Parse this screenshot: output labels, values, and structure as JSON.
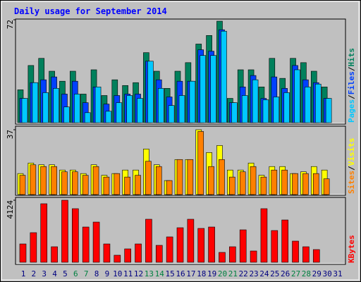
{
  "chart_data": [
    {
      "type": "bar",
      "title": "Daily usage for September 2014",
      "legend_separator": "/",
      "ylim": [
        0,
        72
      ],
      "yticks": [
        72
      ],
      "series": [
        {
          "name": "Hits",
          "color": "#00805c",
          "values": [
            23,
            40,
            45,
            36,
            29,
            36,
            20,
            37,
            19,
            30,
            26,
            28,
            49,
            36,
            24,
            36,
            42,
            55,
            61,
            71,
            17,
            37,
            37,
            25,
            45,
            31,
            45,
            42,
            36,
            25,
            0
          ]
        },
        {
          "name": "Files",
          "color": "#0040ff",
          "values": [
            17,
            28,
            30,
            32,
            20,
            29,
            14,
            25,
            13,
            19,
            20,
            20,
            43,
            30,
            18,
            29,
            29,
            51,
            50,
            65,
            14,
            25,
            33,
            17,
            32,
            24,
            40,
            30,
            28,
            17,
            0
          ]
        },
        {
          "name": "Pages",
          "color": "#00c8ff",
          "values": [
            17,
            28,
            21,
            24,
            11,
            20,
            7,
            25,
            8,
            14,
            19,
            17,
            43,
            24,
            12,
            19,
            29,
            47,
            47,
            64,
            14,
            19,
            30,
            16,
            18,
            21,
            37,
            25,
            27,
            17,
            0
          ]
        }
      ]
    },
    {
      "type": "bar",
      "legend_separator": "/",
      "ylim": [
        0,
        37
      ],
      "yticks": [
        37
      ],
      "series": [
        {
          "name": "Visits",
          "color": "#ffff00",
          "values": [
            12,
            18,
            17,
            17,
            14,
            14,
            12,
            17,
            11,
            12,
            14,
            14,
            26,
            17,
            8,
            20,
            20,
            37,
            24,
            28,
            14,
            14,
            18,
            11,
            16,
            16,
            12,
            13,
            16,
            14,
            0
          ]
        },
        {
          "name": "Sites",
          "color": "#ff8000",
          "values": [
            11,
            17,
            16,
            16,
            13,
            13,
            11,
            16,
            10,
            12,
            10,
            11,
            19,
            16,
            8,
            20,
            20,
            36,
            16,
            20,
            10,
            13,
            16,
            10,
            14,
            14,
            12,
            12,
            12,
            9,
            0
          ]
        }
      ]
    },
    {
      "type": "bar",
      "ylim": [
        0,
        4124
      ],
      "yticks": [
        4124
      ],
      "categories": [
        "1",
        "2",
        "3",
        "4",
        "5",
        "6",
        "7",
        "8",
        "9",
        "10",
        "11",
        "12",
        "13",
        "14",
        "15",
        "16",
        "17",
        "18",
        "19",
        "20",
        "21",
        "22",
        "23",
        "24",
        "25",
        "26",
        "27",
        "28",
        "29",
        "30",
        "31"
      ],
      "category_colors": [
        "#000080",
        "#000080",
        "#000080",
        "#000080",
        "#000080",
        "#008040",
        "#008040",
        "#000080",
        "#000080",
        "#000080",
        "#000080",
        "#000080",
        "#008040",
        "#008040",
        "#000080",
        "#000080",
        "#000080",
        "#000080",
        "#000080",
        "#008040",
        "#008040",
        "#000080",
        "#000080",
        "#000080",
        "#000080",
        "#000080",
        "#008040",
        "#008040",
        "#000080",
        "#000080",
        "#000080"
      ],
      "series": [
        {
          "name": "KBytes",
          "color": "#ff0000",
          "values": [
            1218,
            1968,
            3890,
            1031,
            4124,
            3562,
            2343,
            2671,
            1218,
            469,
            890,
            1218,
            2859,
            1125,
            1687,
            2296,
            2859,
            2250,
            2343,
            656,
            1031,
            2156,
            750,
            3562,
            2109,
            2812,
            1406,
            1031,
            844,
            0,
            0
          ]
        }
      ]
    }
  ]
}
